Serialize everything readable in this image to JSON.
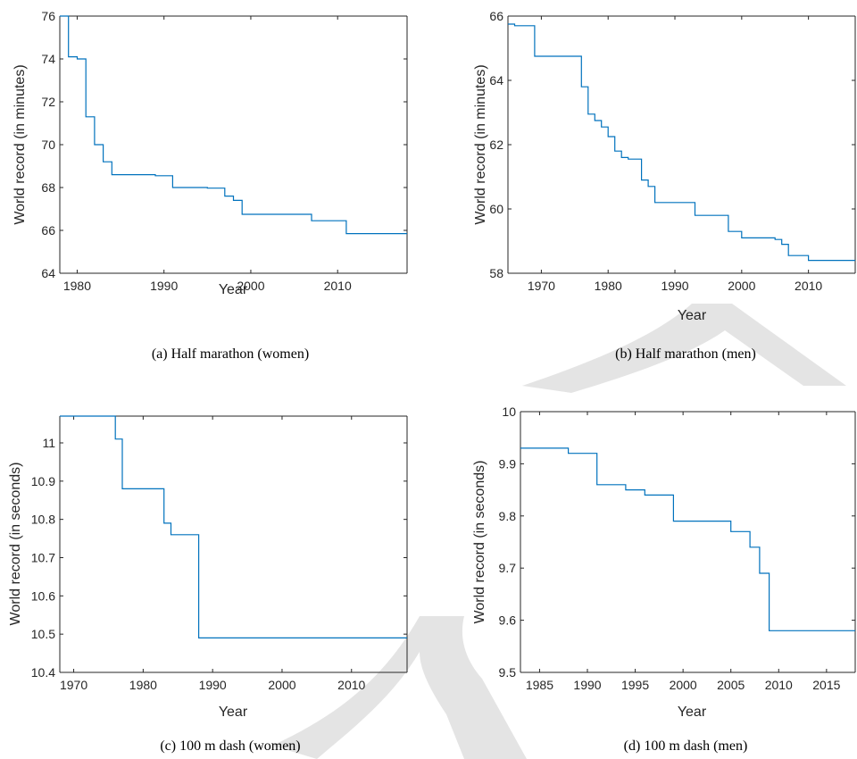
{
  "colors": {
    "line": "#0072bd",
    "axis": "#262626",
    "text": "#262626",
    "caption": "#000000",
    "scribble": "#e4e4e4"
  },
  "chart_data": [
    {
      "type": "line",
      "step": true,
      "caption": "(a)  Half marathon (women)",
      "xlabel": "Year",
      "ylabel": "World record (in minutes)",
      "xlim": [
        1978,
        2018
      ],
      "ylim": [
        64,
        76
      ],
      "xticks": [
        1980,
        1990,
        2000,
        2010
      ],
      "yticks": [
        64,
        66,
        68,
        70,
        72,
        74,
        76
      ],
      "ytick_labels": [
        "64",
        "66",
        "68",
        "70",
        "72",
        "74",
        "76"
      ],
      "x": [
        1978,
        1979,
        1980,
        1981,
        1982,
        1983,
        1984,
        1989,
        1991,
        1995,
        1997,
        1998,
        1999,
        2007,
        2011,
        2018
      ],
      "y": [
        76,
        74.1,
        74.0,
        71.3,
        70.0,
        69.2,
        68.6,
        68.55,
        68.0,
        67.97,
        67.6,
        67.4,
        66.75,
        66.45,
        65.85,
        65.85
      ]
    },
    {
      "type": "line",
      "step": true,
      "caption": "(b)  Half marathon (men)",
      "xlabel": "Year",
      "ylabel": "World record (in minutes)",
      "xlim": [
        1965,
        2017
      ],
      "ylim": [
        58,
        66
      ],
      "xticks": [
        1970,
        1980,
        1990,
        2000,
        2010
      ],
      "yticks": [
        58,
        60,
        62,
        64,
        66
      ],
      "ytick_labels": [
        "58",
        "60",
        "62",
        "64",
        "66"
      ],
      "x": [
        1965,
        1966,
        1969,
        1976,
        1977,
        1978,
        1979,
        1980,
        1981,
        1982,
        1983,
        1985,
        1986,
        1987,
        1993,
        1998,
        2000,
        2005,
        2006,
        2007,
        2010,
        2017
      ],
      "y": [
        65.75,
        65.7,
        64.75,
        63.8,
        62.95,
        62.75,
        62.55,
        62.25,
        61.8,
        61.6,
        61.55,
        60.9,
        60.7,
        60.2,
        59.8,
        59.3,
        59.1,
        59.05,
        58.9,
        58.55,
        58.4,
        58.4
      ]
    },
    {
      "type": "line",
      "step": true,
      "caption": "(c)  100 m dash (women)",
      "xlabel": "Year",
      "ylabel": "World record (in seconds)",
      "xlim": [
        1968,
        2018
      ],
      "ylim": [
        10.4,
        11.07
      ],
      "xticks": [
        1970,
        1980,
        1990,
        2000,
        2010
      ],
      "yticks": [
        10.4,
        10.5,
        10.6,
        10.7,
        10.8,
        10.9,
        11
      ],
      "ytick_labels": [
        "10.4",
        "10.5",
        "10.6",
        "10.7",
        "10.8",
        "10.9",
        "11"
      ],
      "x": [
        1968,
        1976,
        1977,
        1983,
        1984,
        1988,
        2018
      ],
      "y": [
        11.07,
        11.01,
        10.88,
        10.79,
        10.76,
        10.49,
        10.49
      ]
    },
    {
      "type": "line",
      "step": true,
      "caption": "(d)  100 m dash (men)",
      "xlabel": "Year",
      "ylabel": "World record (in seconds)",
      "xlim": [
        1983,
        2018
      ],
      "ylim": [
        9.5,
        10
      ],
      "xticks": [
        1985,
        1990,
        1995,
        2000,
        2005,
        2010,
        2015
      ],
      "yticks": [
        9.5,
        9.6,
        9.7,
        9.8,
        9.9,
        10
      ],
      "ytick_labels": [
        "9.5",
        "9.6",
        "9.7",
        "9.8",
        "9.9",
        "10"
      ],
      "x": [
        1983,
        1988,
        1991,
        1994,
        1996,
        1999,
        2005,
        2007,
        2008,
        2009,
        2018
      ],
      "y": [
        9.93,
        9.92,
        9.86,
        9.85,
        9.84,
        9.79,
        9.77,
        9.74,
        9.69,
        9.58,
        9.58
      ]
    }
  ]
}
